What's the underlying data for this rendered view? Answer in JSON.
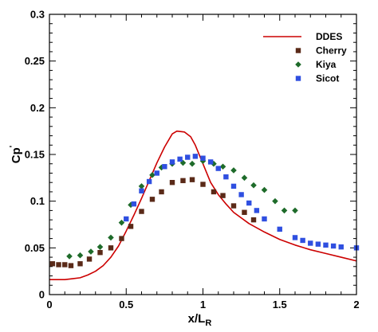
{
  "chart_data": {
    "type": "line",
    "xlabel": "x/L_R",
    "ylabel": "Cp'",
    "xlim": [
      0,
      2
    ],
    "ylim": [
      0,
      0.3
    ],
    "x_ticks": [
      0,
      0.5,
      1,
      1.5,
      2
    ],
    "x_tick_labels": [
      "0",
      "0.5",
      "1",
      "1.5",
      "2"
    ],
    "y_ticks": [
      0,
      0.05,
      0.1,
      0.15,
      0.2,
      0.25,
      0.3
    ],
    "y_tick_labels": [
      "0",
      "0.05",
      "0.1",
      "0.15",
      "0.2",
      "0.25",
      "0.3"
    ],
    "grid": false,
    "legend_position": "top-right",
    "series": [
      {
        "name": "DDES",
        "kind": "line",
        "color": "#cc0000",
        "x": [
          0,
          0.1,
          0.15,
          0.2,
          0.25,
          0.3,
          0.35,
          0.4,
          0.45,
          0.5,
          0.55,
          0.6,
          0.65,
          0.7,
          0.75,
          0.8,
          0.83,
          0.88,
          0.92,
          0.95,
          1.0,
          1.05,
          1.1,
          1.15,
          1.2,
          1.3,
          1.4,
          1.5,
          1.6,
          1.7,
          1.8,
          1.9,
          2.0
        ],
        "y": [
          0.016,
          0.016,
          0.017,
          0.018,
          0.021,
          0.025,
          0.031,
          0.04,
          0.052,
          0.068,
          0.085,
          0.103,
          0.122,
          0.141,
          0.158,
          0.172,
          0.175,
          0.174,
          0.169,
          0.16,
          0.14,
          0.12,
          0.107,
          0.097,
          0.088,
          0.076,
          0.067,
          0.059,
          0.053,
          0.048,
          0.044,
          0.04,
          0.036
        ]
      },
      {
        "name": "Cherry",
        "kind": "scatter",
        "marker": "square",
        "color": "#5a2a18",
        "x": [
          0.02,
          0.06,
          0.1,
          0.14,
          0.2,
          0.26,
          0.33,
          0.4,
          0.47,
          0.53,
          0.6,
          0.67,
          0.73,
          0.8,
          0.87,
          0.93,
          1.0,
          1.07,
          1.13,
          1.2,
          1.27,
          1.33
        ],
        "y": [
          0.033,
          0.032,
          0.032,
          0.031,
          0.033,
          0.038,
          0.045,
          0.05,
          0.06,
          0.073,
          0.089,
          0.102,
          0.11,
          0.12,
          0.122,
          0.123,
          0.118,
          0.11,
          0.106,
          0.095,
          0.088,
          0.08
        ]
      },
      {
        "name": "Kiya",
        "kind": "scatter",
        "marker": "diamond",
        "color": "#1e6b2a",
        "x": [
          0.13,
          0.2,
          0.27,
          0.33,
          0.4,
          0.47,
          0.53,
          0.6,
          0.67,
          0.73,
          0.8,
          0.87,
          0.93,
          1.0,
          1.07,
          1.13,
          1.2,
          1.27,
          1.33,
          1.4,
          1.47,
          1.53,
          1.6
        ],
        "y": [
          0.041,
          0.042,
          0.046,
          0.051,
          0.061,
          0.077,
          0.096,
          0.116,
          0.128,
          0.136,
          0.14,
          0.141,
          0.14,
          0.143,
          0.14,
          0.137,
          0.133,
          0.125,
          0.117,
          0.112,
          0.1,
          0.09,
          0.09
        ]
      },
      {
        "name": "Sicot",
        "kind": "scatter",
        "marker": "square",
        "color": "#2f4fe0",
        "x": [
          0.5,
          0.55,
          0.6,
          0.65,
          0.7,
          0.75,
          0.8,
          0.85,
          0.9,
          0.95,
          1.0,
          1.05,
          1.1,
          1.15,
          1.2,
          1.25,
          1.3,
          1.35,
          1.4,
          1.5,
          1.6,
          1.65,
          1.7,
          1.75,
          1.8,
          1.85,
          1.9,
          2.0
        ],
        "y": [
          0.081,
          0.097,
          0.111,
          0.121,
          0.13,
          0.137,
          0.142,
          0.145,
          0.147,
          0.148,
          0.146,
          0.142,
          0.135,
          0.126,
          0.116,
          0.107,
          0.098,
          0.09,
          0.081,
          0.07,
          0.061,
          0.058,
          0.055,
          0.054,
          0.053,
          0.052,
          0.051,
          0.05
        ]
      }
    ]
  }
}
